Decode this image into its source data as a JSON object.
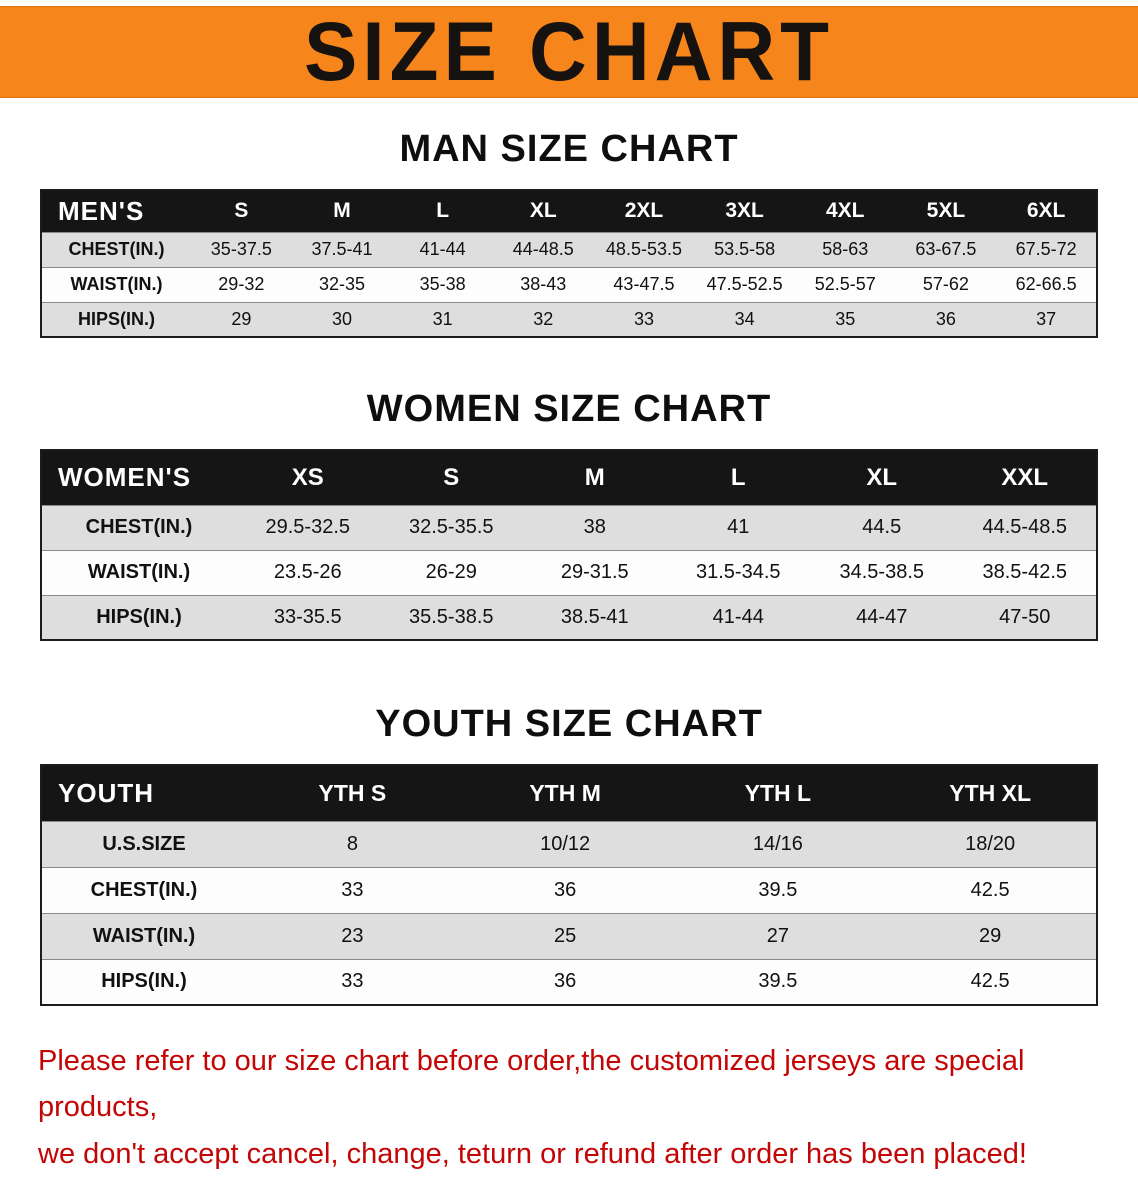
{
  "banner": {
    "title": "SIZE CHART"
  },
  "colors": {
    "banner_bg": "#f6861c",
    "table_header_bg": "#151515",
    "row_alt_bg": "#dedede",
    "footer_text": "#c40505"
  },
  "sections": [
    {
      "heading": "MAN SIZE CHART",
      "table": {
        "header": [
          "MEN'S",
          "S",
          "M",
          "L",
          "XL",
          "2XL",
          "3XL",
          "4XL",
          "5XL",
          "6XL"
        ],
        "rows": [
          [
            "CHEST(IN.)",
            "35-37.5",
            "37.5-41",
            "41-44",
            "44-48.5",
            "48.5-53.5",
            "53.5-58",
            "58-63",
            "63-67.5",
            "67.5-72"
          ],
          [
            "WAIST(IN.)",
            "29-32",
            "32-35",
            "35-38",
            "38-43",
            "43-47.5",
            "47.5-52.5",
            "52.5-57",
            "57-62",
            "62-66.5"
          ],
          [
            "HIPS(IN.)",
            "29",
            "30",
            "31",
            "32",
            "33",
            "34",
            "35",
            "36",
            "37"
          ]
        ]
      }
    },
    {
      "heading": "WOMEN SIZE CHART",
      "table": {
        "header": [
          "WOMEN'S",
          "XS",
          "S",
          "M",
          "L",
          "XL",
          "XXL"
        ],
        "rows": [
          [
            "CHEST(IN.)",
            "29.5-32.5",
            "32.5-35.5",
            "38",
            "41",
            "44.5",
            "44.5-48.5"
          ],
          [
            "WAIST(IN.)",
            "23.5-26",
            "26-29",
            "29-31.5",
            "31.5-34.5",
            "34.5-38.5",
            "38.5-42.5"
          ],
          [
            "HIPS(IN.)",
            "33-35.5",
            "35.5-38.5",
            "38.5-41",
            "41-44",
            "44-47",
            "47-50"
          ]
        ]
      }
    },
    {
      "heading": "YOUTH SIZE CHART",
      "table": {
        "header": [
          "YOUTH",
          "YTH S",
          "YTH M",
          "YTH L",
          "YTH XL"
        ],
        "rows": [
          [
            "U.S.SIZE",
            "8",
            "10/12",
            "14/16",
            "18/20"
          ],
          [
            "CHEST(IN.)",
            "33",
            "36",
            "39.5",
            "42.5"
          ],
          [
            "WAIST(IN.)",
            "23",
            "25",
            "27",
            "29"
          ],
          [
            "HIPS(IN.)",
            "33",
            "36",
            "39.5",
            "42.5"
          ]
        ]
      }
    }
  ],
  "footer": {
    "line1": "Please refer to our size chart before order,the customized jerseys are special products,",
    "line2": "we don't accept cancel, change, teturn or refund after order has been placed!"
  }
}
